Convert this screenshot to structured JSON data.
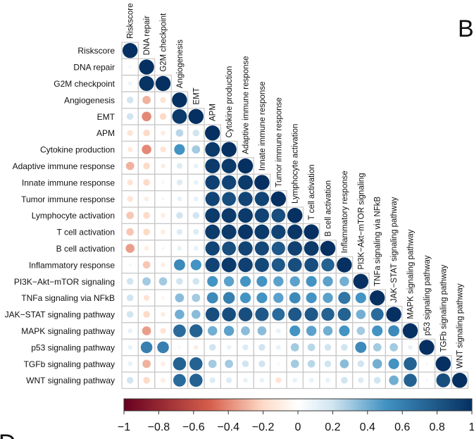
{
  "panel": {
    "letter_right": "B",
    "letter_bottom_left": "D"
  },
  "chart_data": {
    "type": "heatmap",
    "subtype": "correlation-matrix-lower-triangle-circles",
    "variables": [
      "Riskscore",
      "DNA repair",
      "G2M checkpoint",
      "Angiogenesis",
      "EMT",
      "APM",
      "Cytokine production",
      "Adaptive immune response",
      "Innate immune response",
      "Tumor immune response",
      "Lymphocyte activation",
      "T cell activation",
      "B cell activation",
      "Inflammatory response",
      "PI3K−Akt−mTOR signaling",
      "TNFa signaling via NFkB",
      "JAK−STAT signaling pathway",
      "MAPK signaling pathway",
      "p53 signaling pathway",
      "TGFb signaling pathway",
      "WNT signaling pathway"
    ],
    "matrix": [
      [
        1.0
      ],
      [
        0.05,
        1.0
      ],
      [
        0.08,
        0.98,
        1.0
      ],
      [
        0.2,
        -0.3,
        -0.15,
        1.0
      ],
      [
        0.2,
        -0.4,
        -0.2,
        0.95,
        1.0
      ],
      [
        -0.15,
        -0.2,
        -0.1,
        0.25,
        0.2,
        1.0
      ],
      [
        -0.12,
        -0.4,
        -0.15,
        0.5,
        0.3,
        0.95,
        1.0
      ],
      [
        -0.3,
        -0.2,
        -0.1,
        0.15,
        0.1,
        0.95,
        0.95,
        1.0
      ],
      [
        -0.15,
        -0.2,
        -0.05,
        0.15,
        0.1,
        0.92,
        0.9,
        0.95,
        1.0
      ],
      [
        -0.15,
        -0.1,
        -0.05,
        0.1,
        0.1,
        0.9,
        0.85,
        0.9,
        0.9,
        1.0
      ],
      [
        -0.25,
        -0.2,
        -0.1,
        0.2,
        0.2,
        0.95,
        0.95,
        0.95,
        0.9,
        0.85,
        1.0
      ],
      [
        -0.25,
        -0.2,
        -0.1,
        0.15,
        0.15,
        0.95,
        0.95,
        0.97,
        0.95,
        0.9,
        0.97,
        1.0
      ],
      [
        -0.35,
        -0.1,
        -0.05,
        0.1,
        0.1,
        0.9,
        0.85,
        0.9,
        0.88,
        0.8,
        0.92,
        0.95,
        1.0
      ],
      [
        0.05,
        -0.25,
        -0.1,
        0.55,
        0.5,
        0.9,
        0.95,
        0.92,
        0.88,
        0.8,
        0.85,
        0.85,
        0.75,
        1.0
      ],
      [
        0.2,
        0.3,
        0.3,
        0.2,
        0.2,
        0.5,
        0.45,
        0.5,
        0.5,
        0.45,
        0.45,
        0.5,
        0.45,
        0.4,
        1.0
      ],
      [
        0.2,
        -0.15,
        -0.05,
        0.35,
        0.3,
        0.55,
        0.6,
        0.5,
        0.5,
        0.45,
        0.55,
        0.5,
        0.45,
        0.65,
        0.5,
        1.0
      ],
      [
        0.2,
        -0.2,
        -0.1,
        0.4,
        0.35,
        0.85,
        0.85,
        0.85,
        0.8,
        0.7,
        0.8,
        0.8,
        0.75,
        0.75,
        0.4,
        0.7,
        1.0
      ],
      [
        0.1,
        -0.35,
        -0.15,
        0.7,
        0.75,
        0.4,
        0.45,
        0.35,
        0.35,
        0.1,
        0.5,
        0.45,
        0.4,
        0.5,
        0.3,
        0.5,
        0.55,
        1.0
      ],
      [
        0.1,
        0.6,
        0.6,
        -0.05,
        -0.1,
        0.2,
        0.1,
        0.15,
        0.2,
        0.1,
        0.3,
        0.25,
        0.2,
        0.2,
        0.55,
        0.3,
        0.3,
        0.1,
        1.0
      ],
      [
        0.1,
        -0.3,
        -0.1,
        0.75,
        0.75,
        0.3,
        0.3,
        0.2,
        0.2,
        0.05,
        0.3,
        0.25,
        0.2,
        0.35,
        0.2,
        0.4,
        0.5,
        0.75,
        0.05,
        1.0
      ],
      [
        0.2,
        -0.2,
        -0.1,
        0.7,
        0.75,
        0.15,
        0.15,
        0.1,
        0.1,
        -0.15,
        0.1,
        0.1,
        0.1,
        0.2,
        0.15,
        0.2,
        0.4,
        0.75,
        0.05,
        0.85,
        1.0
      ]
    ],
    "colorbar": {
      "range": [
        -1,
        1
      ],
      "ticks": [
        -1,
        -0.8,
        -0.6,
        -0.4,
        -0.2,
        0,
        0.2,
        0.4,
        0.6,
        0.8,
        1
      ],
      "tick_labels": [
        "−1",
        "−0.8",
        "−0.6",
        "−0.4",
        "−0.2",
        "0",
        "0.2",
        "0.4",
        "0.6",
        "0.8",
        "1"
      ],
      "colors": {
        "neg_end": "#67001f",
        "neg_mid": "#d6604d",
        "neg_light": "#fddbc7",
        "zero": "#ffffff",
        "pos_light": "#d1e5f0",
        "pos_mid": "#4393c3",
        "pos_end": "#053061"
      }
    },
    "grid_color": "#c8c8c8"
  }
}
